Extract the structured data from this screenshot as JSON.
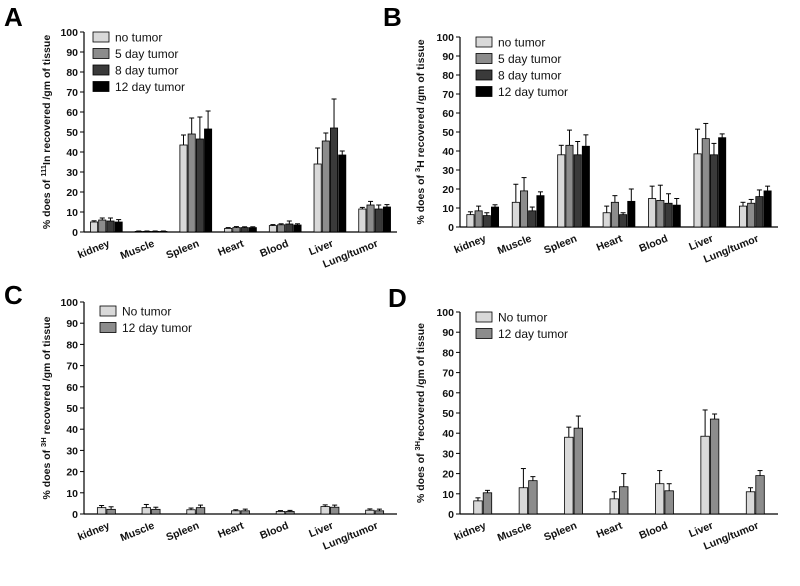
{
  "colors": {
    "no_tumor": "#d9d9d9",
    "day5": "#8c8c8c",
    "day8": "#3a3a3a",
    "day12": "#000000",
    "day12_two_series": "#8c8c8c",
    "axis": "#000000"
  },
  "chart_data": [
    {
      "panel": "A",
      "type": "bar",
      "ylabel_prefix": "% does of ",
      "ylabel_sup": "111",
      "ylabel_suffix": "In recovered /gm of tissue",
      "ylim": [
        0,
        100
      ],
      "yticks": [
        "0",
        "10",
        "20",
        "30",
        "40",
        "50",
        "60",
        "70",
        "80",
        "90",
        "100"
      ],
      "legend": "top-left",
      "categories": [
        "kidney",
        "Muscle",
        "Spleen",
        "Heart",
        "Blood",
        "Liver",
        "Lung/tumor"
      ],
      "series": [
        {
          "name": "no tumor",
          "color": "no_tumor",
          "values": [
            5,
            0.3,
            43.5,
            1.8,
            3.2,
            34,
            11.5
          ],
          "errors": [
            0.6,
            0.2,
            5,
            0.4,
            0.5,
            8,
            0.8
          ]
        },
        {
          "name": "5 day tumor",
          "color": "day5",
          "values": [
            6,
            0.3,
            49,
            2.2,
            3.6,
            45.5,
            13.5
          ],
          "errors": [
            1,
            0.2,
            8,
            0.5,
            0.5,
            4,
            1.8
          ]
        },
        {
          "name": "8 day tumor",
          "color": "day8",
          "values": [
            5.5,
            0.3,
            46.5,
            2.2,
            4,
            52,
            11.5
          ],
          "errors": [
            1.5,
            0.2,
            11,
            0.4,
            1.5,
            14.5,
            2
          ]
        },
        {
          "name": "12 day tumor",
          "color": "day12",
          "values": [
            5,
            0.3,
            51.5,
            2.2,
            3.5,
            38.5,
            12.5
          ],
          "errors": [
            1.2,
            0.2,
            9,
            0.4,
            0.6,
            2,
            1.2
          ]
        }
      ]
    },
    {
      "panel": "B",
      "type": "bar",
      "ylabel_prefix": "% does of ",
      "ylabel_sup": "3",
      "ylabel_suffix": "H recovered /gm of tissue",
      "ylim": [
        0,
        100
      ],
      "yticks": [
        "0",
        "10",
        "20",
        "30",
        "40",
        "50",
        "60",
        "70",
        "80",
        "90",
        "100"
      ],
      "legend": "top-left",
      "categories": [
        "kidney",
        "Muscle",
        "Spleen",
        "Heart",
        "Blood",
        "Liver",
        "Lung/tumor"
      ],
      "series": [
        {
          "name": "no tumor",
          "color": "no_tumor",
          "values": [
            6.5,
            13,
            38,
            7.5,
            15,
            38.5,
            11
          ],
          "errors": [
            1.5,
            9.5,
            5,
            3.5,
            6.5,
            13,
            2
          ]
        },
        {
          "name": "5 day tumor",
          "color": "day5",
          "values": [
            8.5,
            19,
            43,
            13,
            14,
            46.5,
            12.5
          ],
          "errors": [
            2.5,
            7,
            8,
            3.5,
            8,
            8,
            2
          ]
        },
        {
          "name": "8 day tumor",
          "color": "day8",
          "values": [
            6,
            8.5,
            38,
            6.5,
            12.5,
            38,
            16
          ],
          "errors": [
            1.5,
            2,
            7,
            1,
            5,
            6,
            3.5
          ]
        },
        {
          "name": "12 day tumor",
          "color": "day12",
          "values": [
            10.5,
            16.5,
            42.5,
            13.5,
            11.5,
            47,
            19
          ],
          "errors": [
            1.2,
            2,
            6,
            6.5,
            3.5,
            2,
            2.5
          ]
        }
      ]
    },
    {
      "panel": "C",
      "type": "bar",
      "ylabel_prefix": "% does of ",
      "ylabel_sup": "3H",
      "ylabel_suffix": " recovered /gm of tissue",
      "ylim": [
        0,
        100
      ],
      "yticks": [
        "0",
        "10",
        "20",
        "30",
        "40",
        "50",
        "60",
        "70",
        "80",
        "90",
        "100"
      ],
      "legend": "top-left",
      "categories": [
        "kidney",
        "Muscle",
        "Spleen",
        "Heart",
        "Blood",
        "Liver",
        "Lung/tumor"
      ],
      "series": [
        {
          "name": "No tumor",
          "color": "no_tumor",
          "values": [
            3,
            3,
            2,
            1.5,
            1.2,
            3.5,
            1.8
          ],
          "errors": [
            1,
            1.5,
            0.8,
            0.5,
            0.4,
            0.8,
            0.6
          ]
        },
        {
          "name": "12 day tumor",
          "color": "day12_two_series",
          "values": [
            2.2,
            2.2,
            3,
            1.5,
            1.2,
            3.2,
            1.5
          ],
          "errors": [
            1.2,
            1,
            1.2,
            0.8,
            0.5,
            1,
            0.8
          ]
        }
      ]
    },
    {
      "panel": "D",
      "type": "bar",
      "ylabel_prefix": "% does of ",
      "ylabel_sup": "3H",
      "ylabel_suffix": "recovered /gm of tissue",
      "ylim": [
        0,
        100
      ],
      "yticks": [
        "0",
        "10",
        "20",
        "30",
        "40",
        "50",
        "60",
        "70",
        "80",
        "90",
        "100"
      ],
      "legend": "top-left",
      "categories": [
        "kidney",
        "Muscle",
        "Spleen",
        "Heart",
        "Blood",
        "Liver",
        "Lung/tumor"
      ],
      "series": [
        {
          "name": "No tumor",
          "color": "no_tumor",
          "values": [
            6.5,
            13,
            38,
            7.5,
            15,
            38.5,
            11
          ],
          "errors": [
            1.5,
            9.5,
            5,
            3.5,
            6.5,
            13,
            2
          ]
        },
        {
          "name": "12 day tumor",
          "color": "day12_two_series",
          "values": [
            10.5,
            16.5,
            42.5,
            13.5,
            11.5,
            47,
            19
          ],
          "errors": [
            1.2,
            2,
            6,
            6.5,
            3.5,
            2.5,
            2.5
          ]
        }
      ]
    }
  ]
}
